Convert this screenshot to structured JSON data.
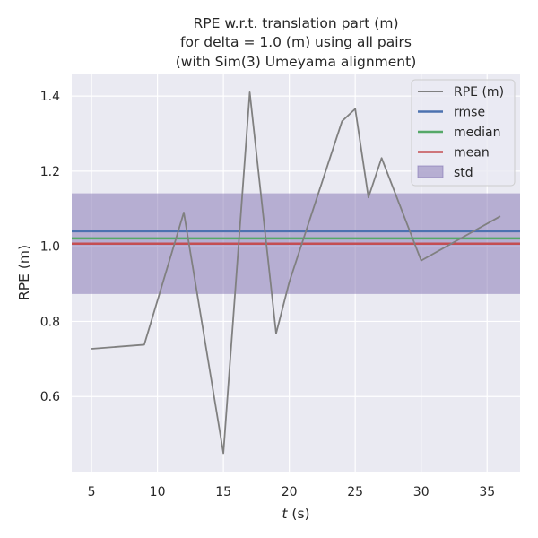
{
  "chart_data": {
    "type": "line",
    "title_lines": [
      "RPE w.r.t. translation part (m)",
      "for delta = 1.0 (m) using all pairs",
      "(with Sim(3) Umeyama alignment)"
    ],
    "xlabel_var": "t",
    "xlabel_unit": " (s)",
    "ylabel": "RPE (m)",
    "xlim": [
      3.5,
      37.5
    ],
    "ylim": [
      0.4,
      1.46
    ],
    "xticks": [
      5,
      10,
      15,
      20,
      25,
      30,
      35
    ],
    "yticks": [
      0.6,
      0.8,
      1.0,
      1.2,
      1.4
    ],
    "ytick_labels": [
      "0.6",
      "0.8",
      "1.0",
      "1.2",
      "1.4"
    ],
    "grid": true,
    "legend_position": "top-right",
    "series": [
      {
        "name": "RPE (m)",
        "color": "#808080",
        "x": [
          5,
          9,
          12,
          15,
          17,
          19,
          20,
          24,
          25,
          26,
          27,
          30,
          36
        ],
        "y": [
          0.727,
          0.738,
          1.09,
          0.449,
          1.41,
          0.768,
          0.905,
          1.333,
          1.366,
          1.13,
          1.235,
          0.962,
          1.08
        ]
      }
    ],
    "stats": {
      "rmse": {
        "name": "rmse",
        "value": 1.04,
        "color": "#4c72b0"
      },
      "median": {
        "name": "median",
        "value": 1.021,
        "color": "#55a868"
      },
      "mean": {
        "name": "mean",
        "value": 1.007,
        "color": "#c44e52"
      },
      "std": {
        "name": "std",
        "low": 0.873,
        "high": 1.141,
        "color": "#8172b2"
      }
    },
    "legend": [
      "RPE (m)",
      "rmse",
      "median",
      "mean",
      "std"
    ]
  }
}
